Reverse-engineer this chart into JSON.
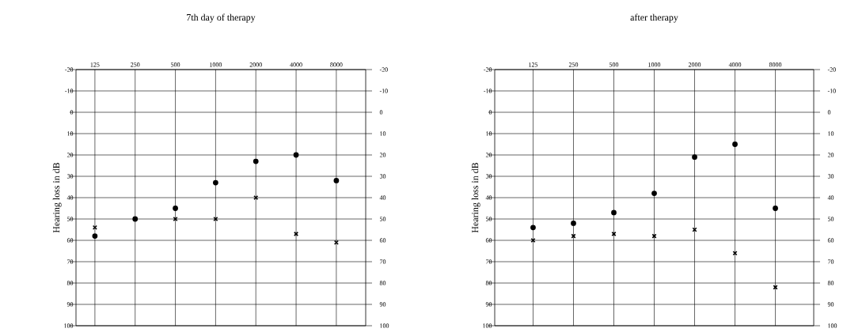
{
  "chart_data": [
    {
      "type": "scatter",
      "title": "7th day of therapy",
      "ylabel": "Hearing loss in dB",
      "categories": [
        "125",
        "250",
        "500",
        "1000",
        "2000",
        "4000",
        "8000"
      ],
      "series": [
        {
          "color": "#000000",
          "marker": "circle",
          "values": [
            58,
            50,
            45,
            33,
            23,
            20,
            32
          ]
        },
        {
          "color": "#000000",
          "marker": "cross",
          "values": [
            54,
            50,
            50,
            50,
            40,
            57,
            61
          ]
        }
      ],
      "ylim": [
        100,
        -20
      ],
      "yticks": [
        -20,
        -10,
        0,
        10,
        20,
        30,
        40,
        50,
        60,
        70,
        80,
        90,
        100
      ],
      "y2lim": [
        100,
        -20
      ],
      "y2ticks": [
        -20,
        -10,
        0,
        10,
        20,
        30,
        40,
        50,
        60,
        70,
        80,
        90,
        100
      ],
      "grid": true
    },
    {
      "type": "scatter",
      "title": "after therapy",
      "ylabel": "Hearing loss in dB",
      "categories": [
        "125",
        "250",
        "500",
        "1000",
        "2000",
        "4000",
        "8000"
      ],
      "series": [
        {
          "color": "#000000",
          "marker": "circle",
          "values": [
            54,
            52,
            47,
            38,
            21,
            15,
            45
          ]
        },
        {
          "color": "#000000",
          "marker": "cross",
          "values": [
            60,
            58,
            57,
            58,
            55,
            66,
            82
          ]
        }
      ],
      "ylim": [
        100,
        -20
      ],
      "yticks": [
        -20,
        -10,
        0,
        10,
        20,
        30,
        40,
        50,
        60,
        70,
        80,
        90,
        100
      ],
      "y2lim": [
        100,
        -20
      ],
      "y2ticks": [
        -20,
        -10,
        0,
        10,
        20,
        30,
        40,
        50,
        60,
        70,
        80,
        90,
        100
      ],
      "grid": true
    }
  ]
}
